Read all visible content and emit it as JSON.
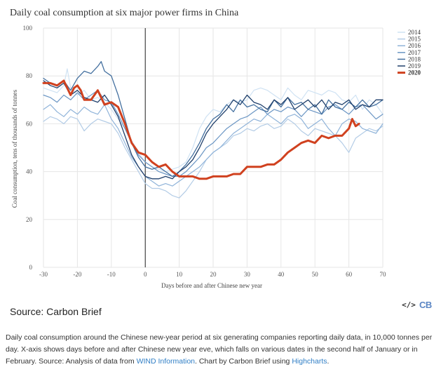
{
  "chart_data": {
    "type": "line",
    "title": "Daily coal consumption at six major power firms in China",
    "xlabel": "Days before and after Chinese new year",
    "ylabel": "Coal consumption, tens of thousands of tonnes",
    "xlim": [
      -30,
      70
    ],
    "ylim": [
      0,
      100
    ],
    "xticks": [
      -30,
      -20,
      -10,
      0,
      10,
      20,
      30,
      40,
      50,
      60,
      70
    ],
    "yticks": [
      0,
      20,
      40,
      60,
      80,
      100
    ],
    "vertical_marker_x": 0,
    "legend_position": "top-right",
    "series": [
      {
        "name": "2014",
        "color": "#cfe2f3",
        "width": 1.2,
        "x": [
          -30,
          -28,
          -26,
          -24,
          -23,
          -22,
          -20,
          -18,
          -16,
          -14,
          -12,
          -10,
          -8,
          -6,
          -4,
          -2,
          0,
          2,
          4,
          6,
          8,
          10,
          12,
          14,
          16,
          18,
          20,
          22,
          24,
          26,
          28,
          30,
          32,
          34,
          36,
          38,
          40,
          42,
          44,
          46,
          48,
          50,
          52,
          54,
          56,
          58,
          60,
          62,
          64,
          66,
          68,
          70
        ],
        "y": [
          75,
          74,
          73,
          76,
          83,
          75,
          72,
          74,
          70,
          71,
          69,
          66,
          62,
          58,
          53,
          48,
          44,
          42,
          41,
          40,
          41,
          42,
          44,
          50,
          58,
          63,
          66,
          65,
          68,
          70,
          69,
          70,
          74,
          75,
          74,
          72,
          70,
          75,
          72,
          70,
          74,
          73,
          72,
          74,
          73,
          70,
          69,
          72,
          66,
          70,
          68,
          64
        ]
      },
      {
        "name": "2015",
        "color": "#b3cce6",
        "width": 1.2,
        "x": [
          -30,
          -28,
          -26,
          -24,
          -22,
          -20,
          -18,
          -16,
          -14,
          -12,
          -10,
          -8,
          -6,
          -4,
          -2,
          0,
          2,
          4,
          6,
          8,
          10,
          12,
          14,
          16,
          18,
          20,
          22,
          24,
          26,
          28,
          30,
          32,
          34,
          36,
          38,
          40,
          42,
          44,
          46,
          48,
          50,
          52,
          54,
          56,
          58,
          60,
          62,
          64,
          66,
          68,
          70
        ],
        "y": [
          61,
          63,
          62,
          60,
          63,
          62,
          57,
          60,
          62,
          61,
          60,
          56,
          50,
          45,
          40,
          35,
          33,
          33,
          32,
          30,
          29,
          32,
          36,
          40,
          45,
          48,
          50,
          52,
          55,
          56,
          58,
          57,
          59,
          60,
          58,
          59,
          62,
          60,
          57,
          55,
          58,
          57,
          56,
          55,
          52,
          48,
          54,
          56,
          58,
          57,
          59
        ]
      },
      {
        "name": "2016",
        "color": "#8fb3d9",
        "width": 1.2,
        "x": [
          -30,
          -28,
          -26,
          -24,
          -22,
          -20,
          -18,
          -16,
          -14,
          -12,
          -10,
          -8,
          -6,
          -4,
          -2,
          0,
          2,
          4,
          6,
          8,
          10,
          12,
          14,
          16,
          18,
          20,
          22,
          24,
          26,
          28,
          30,
          32,
          34,
          36,
          38,
          40,
          42,
          44,
          46,
          48,
          50,
          52,
          54,
          56,
          58,
          60,
          62,
          64,
          66,
          68,
          70
        ],
        "y": [
          66,
          68,
          65,
          63,
          66,
          64,
          67,
          65,
          64,
          68,
          62,
          58,
          52,
          46,
          42,
          38,
          36,
          34,
          35,
          34,
          36,
          38,
          40,
          42,
          45,
          48,
          50,
          53,
          56,
          58,
          60,
          62,
          61,
          64,
          62,
          60,
          63,
          64,
          62,
          58,
          60,
          62,
          58,
          55,
          60,
          62,
          61,
          58,
          57,
          56,
          60
        ]
      },
      {
        "name": "2017",
        "color": "#6b96c4",
        "width": 1.2,
        "x": [
          -30,
          -28,
          -26,
          -24,
          -22,
          -20,
          -18,
          -16,
          -14,
          -12,
          -10,
          -8,
          -6,
          -4,
          -2,
          0,
          2,
          4,
          6,
          8,
          10,
          12,
          14,
          16,
          18,
          20,
          22,
          24,
          26,
          28,
          30,
          32,
          34,
          36,
          38,
          40,
          42,
          44,
          46,
          48,
          50,
          52,
          54,
          56,
          58,
          60,
          62,
          64,
          66,
          68,
          70
        ],
        "y": [
          72,
          71,
          69,
          72,
          70,
          73,
          70,
          72,
          74,
          70,
          69,
          64,
          58,
          52,
          47,
          44,
          42,
          40,
          39,
          38,
          38,
          40,
          43,
          46,
          50,
          52,
          55,
          58,
          60,
          62,
          63,
          65,
          67,
          64,
          66,
          65,
          67,
          66,
          63,
          66,
          65,
          64,
          67,
          68,
          66,
          64,
          67,
          68,
          65,
          62,
          64
        ]
      },
      {
        "name": "2018",
        "color": "#44709f",
        "width": 1.3,
        "x": [
          -30,
          -28,
          -26,
          -24,
          -22,
          -20,
          -18,
          -16,
          -14,
          -13,
          -12,
          -10,
          -8,
          -6,
          -4,
          -2,
          0,
          2,
          4,
          6,
          8,
          10,
          12,
          14,
          16,
          18,
          20,
          22,
          24,
          26,
          28,
          30,
          32,
          34,
          36,
          38,
          40,
          42,
          44,
          46,
          48,
          50,
          52,
          54,
          56,
          58,
          60,
          62,
          64,
          66,
          68,
          70
        ],
        "y": [
          79,
          77,
          76,
          78,
          74,
          79,
          82,
          81,
          84,
          86,
          82,
          80,
          72,
          62,
          52,
          46,
          42,
          41,
          42,
          40,
          38,
          40,
          43,
          47,
          52,
          58,
          62,
          64,
          68,
          65,
          70,
          67,
          68,
          66,
          65,
          70,
          67,
          71,
          68,
          69,
          66,
          68,
          64,
          70,
          67,
          66,
          69,
          67,
          70,
          67,
          68,
          70
        ]
      },
      {
        "name": "2019",
        "color": "#1f3f6b",
        "width": 1.3,
        "x": [
          -30,
          -28,
          -26,
          -24,
          -22,
          -20,
          -18,
          -16,
          -14,
          -12,
          -10,
          -8,
          -6,
          -4,
          -2,
          0,
          2,
          4,
          6,
          8,
          10,
          12,
          14,
          16,
          18,
          20,
          22,
          24,
          26,
          28,
          30,
          32,
          34,
          36,
          38,
          40,
          42,
          44,
          46,
          48,
          50,
          52,
          54,
          56,
          58,
          60,
          62,
          64,
          66,
          68,
          70
        ],
        "y": [
          78,
          76,
          75,
          77,
          72,
          74,
          71,
          70,
          69,
          72,
          68,
          63,
          55,
          47,
          42,
          38,
          37,
          37,
          38,
          37,
          40,
          42,
          45,
          50,
          56,
          60,
          63,
          66,
          70,
          68,
          72,
          69,
          68,
          66,
          70,
          68,
          71,
          66,
          68,
          70,
          67,
          70,
          66,
          69,
          68,
          70,
          66,
          68,
          67,
          70,
          70
        ]
      },
      {
        "name": "2020",
        "color": "#d0411f",
        "width": 3,
        "x": [
          -30,
          -28,
          -26,
          -24,
          -22,
          -21,
          -20,
          -19,
          -18,
          -16,
          -14,
          -12,
          -10,
          -8,
          -6,
          -4,
          -2,
          0,
          2,
          4,
          6,
          8,
          10,
          12,
          14,
          16,
          18,
          20,
          22,
          24,
          26,
          28,
          30,
          32,
          34,
          36,
          38,
          40,
          42,
          44,
          46,
          48,
          50,
          52,
          54,
          56,
          58,
          60,
          61,
          62,
          63
        ],
        "y": [
          77,
          77,
          76,
          78,
          72,
          75,
          76,
          74,
          70,
          70,
          74,
          68,
          69,
          67,
          60,
          52,
          48,
          47,
          44,
          42,
          43,
          40,
          38,
          38,
          38,
          37,
          37,
          38,
          38,
          38,
          39,
          39,
          42,
          42,
          42,
          43,
          43,
          45,
          48,
          50,
          52,
          53,
          52,
          55,
          54,
          55,
          55,
          58,
          62,
          59,
          60
        ]
      }
    ],
    "legend_entries": [
      "2014",
      "2015",
      "2016",
      "2017",
      "2018",
      "2019",
      "2020"
    ]
  },
  "footer": {
    "source_label": "Source: Carbon Brief",
    "embed_glyph": "</>",
    "logo_text": "CB",
    "caption_part1": "Daily coal consumption around the Chinese new-year period at six generating companies reporting daily data, in 10,000 tonnes per day. X-axis shows days before and after Chinese new year eve, which falls on various dates in the second half of January or in February. Source: Analysis of data from ",
    "caption_link1": "WIND Information",
    "caption_part2": ". Chart by Carbon Brief using ",
    "caption_link2": "Highcharts",
    "caption_part3": "."
  }
}
